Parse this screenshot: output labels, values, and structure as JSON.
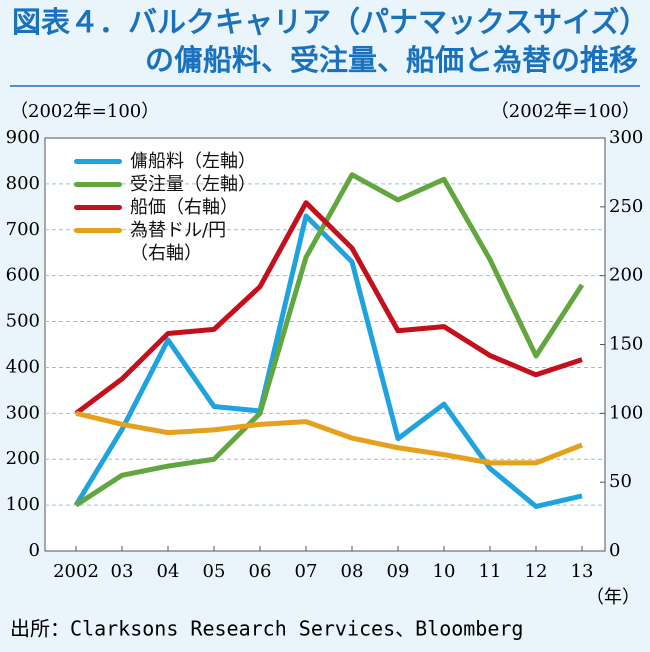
{
  "chart_data": {
    "type": "line",
    "title": "図表４．バルクキャリア（パナマックスサイズ）",
    "subtitle": "の傭船料、受注量、船価と為替の推移",
    "y_label": "（2002年=100）",
    "y2_label": "（2002年=100）",
    "x_label": "（年）",
    "source": "出所：Clarksons Research Services、Bloomberg",
    "categories": [
      "2002",
      "03",
      "04",
      "05",
      "06",
      "07",
      "08",
      "09",
      "10",
      "11",
      "12",
      "13"
    ],
    "series": [
      {
        "name": "傭船料（左軸）",
        "color": "#1fa3e0",
        "values": [
          100,
          265,
          460,
          315,
          305,
          730,
          630,
          245,
          320,
          180,
          97,
          120
        ]
      },
      {
        "name": "受注量（左軸）",
        "color": "#62a640",
        "values": [
          100,
          165,
          185,
          200,
          300,
          640,
          820,
          765,
          810,
          635,
          425,
          580
        ]
      },
      {
        "name": "船価（右軸）",
        "color": "#c3101c",
        "axis": "y2",
        "values": [
          100,
          125,
          158,
          161,
          192,
          253,
          220,
          160,
          163,
          142,
          128,
          139
        ]
      },
      {
        "name": "為替ドル/円\n（右軸）",
        "color": "#e5a11c",
        "axis": "y2",
        "values": [
          100,
          92,
          86,
          88,
          92,
          94,
          82,
          75,
          70,
          64,
          64,
          77
        ]
      }
    ],
    "ylim": [
      0,
      900
    ],
    "yticks": [
      0,
      100,
      200,
      300,
      400,
      500,
      600,
      700,
      800,
      900
    ],
    "y2lim": [
      0,
      300
    ],
    "y2ticks": [
      0,
      50,
      100,
      150,
      200,
      250,
      300
    ],
    "grid": true
  }
}
